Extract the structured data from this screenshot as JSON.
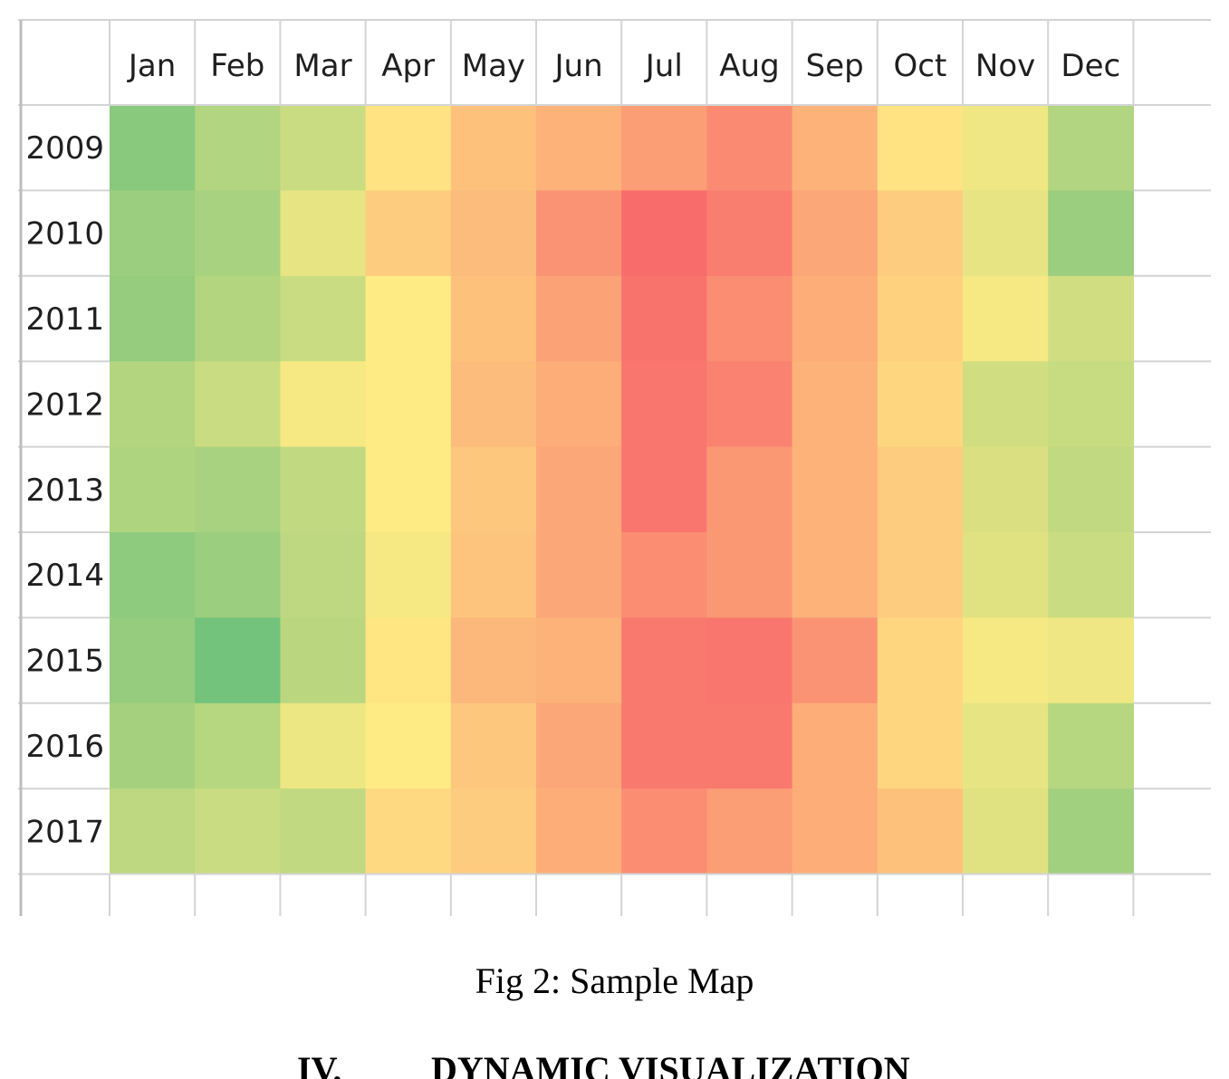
{
  "chart_data": {
    "type": "heatmap",
    "columns": [
      "Jan",
      "Feb",
      "Mar",
      "Apr",
      "May",
      "Jun",
      "Jul",
      "Aug",
      "Sep",
      "Oct",
      "Nov",
      "Dec"
    ],
    "rows": [
      "2009",
      "2010",
      "2011",
      "2012",
      "2013",
      "2014",
      "2015",
      "2016",
      "2017"
    ],
    "color_scale": {
      "low": "#63be7b",
      "mid": "#ffeb84",
      "high": "#f8696b"
    },
    "values": [
      [
        0.12,
        0.25,
        0.33,
        0.53,
        0.66,
        0.72,
        0.8,
        0.87,
        0.72,
        0.53,
        0.45,
        0.25
      ],
      [
        0.18,
        0.22,
        0.42,
        0.62,
        0.68,
        0.84,
        0.99,
        0.92,
        0.76,
        0.62,
        0.42,
        0.18
      ],
      [
        0.16,
        0.26,
        0.33,
        0.5,
        0.66,
        0.78,
        0.96,
        0.86,
        0.74,
        0.6,
        0.47,
        0.35
      ],
      [
        0.26,
        0.33,
        0.47,
        0.5,
        0.68,
        0.74,
        0.95,
        0.9,
        0.72,
        0.58,
        0.35,
        0.32
      ],
      [
        0.24,
        0.22,
        0.3,
        0.5,
        0.64,
        0.76,
        0.95,
        0.82,
        0.72,
        0.62,
        0.38,
        0.3
      ],
      [
        0.14,
        0.18,
        0.29,
        0.47,
        0.65,
        0.76,
        0.86,
        0.82,
        0.72,
        0.62,
        0.4,
        0.33
      ],
      [
        0.16,
        0.05,
        0.28,
        0.52,
        0.7,
        0.72,
        0.94,
        0.95,
        0.84,
        0.58,
        0.47,
        0.45
      ],
      [
        0.21,
        0.27,
        0.44,
        0.5,
        0.64,
        0.76,
        0.94,
        0.94,
        0.74,
        0.58,
        0.42,
        0.27
      ],
      [
        0.29,
        0.33,
        0.3,
        0.57,
        0.62,
        0.74,
        0.86,
        0.8,
        0.74,
        0.66,
        0.4,
        0.2
      ]
    ]
  },
  "caption": "Fig 2: Sample Map",
  "section": {
    "number": "IV.",
    "title": "DYNAMIC VISUALIZATION"
  }
}
